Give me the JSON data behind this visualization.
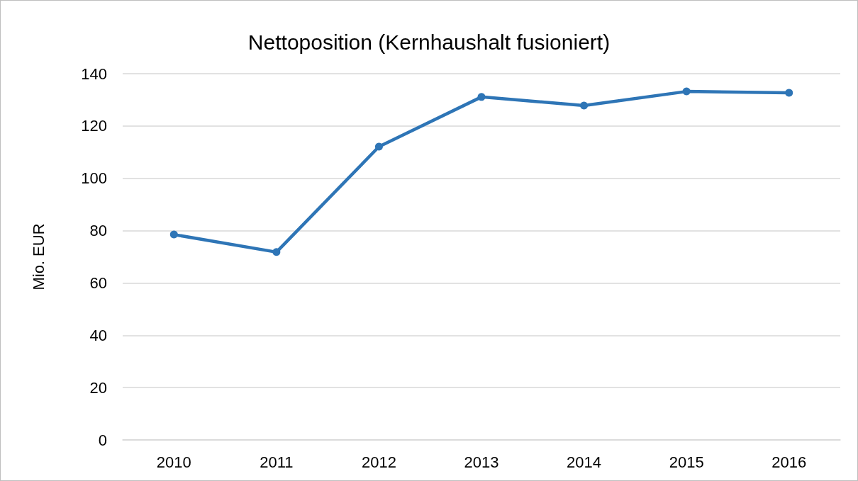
{
  "chart_data": {
    "type": "line",
    "title": "Nettoposition (Kernhaushalt fusioniert)",
    "ylabel": "Mio. EUR",
    "categories": [
      "2010",
      "2011",
      "2012",
      "2013",
      "2014",
      "2015",
      "2016"
    ],
    "series": [
      {
        "color": "#2e75b6",
        "values": [
          78.5,
          71.8,
          112.1,
          131.1,
          127.8,
          133.2,
          132.7
        ]
      }
    ],
    "ylim": [
      0,
      140
    ],
    "yticks": [
      0,
      20,
      40,
      60,
      80,
      100,
      120,
      140
    ],
    "grid": "y",
    "marker": "circle",
    "line_style": "solid"
  }
}
